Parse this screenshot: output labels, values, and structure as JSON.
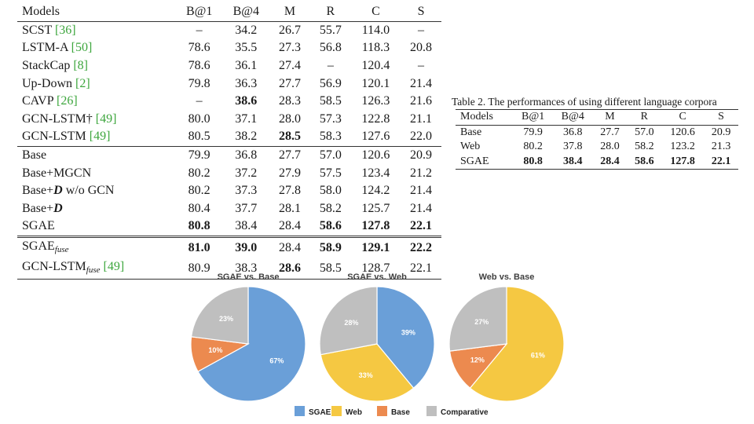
{
  "table1": {
    "headers": [
      "Models",
      "B@1",
      "B@4",
      "M",
      "R",
      "C",
      "S"
    ],
    "rows": [
      {
        "model": "SCST ",
        "cite": "[36]",
        "values": [
          "–",
          "34.2",
          "26.7",
          "55.7",
          "114.0",
          "–"
        ],
        "bold": []
      },
      {
        "model": "LSTM-A ",
        "cite": "[50]",
        "values": [
          "78.6",
          "35.5",
          "27.3",
          "56.8",
          "118.3",
          "20.8"
        ],
        "bold": []
      },
      {
        "model": "StackCap ",
        "cite": "[8]",
        "values": [
          "78.6",
          "36.1",
          "27.4",
          "–",
          "120.4",
          "–"
        ],
        "bold": []
      },
      {
        "model": "Up-Down ",
        "cite": "[2]",
        "values": [
          "79.8",
          "36.3",
          "27.7",
          "56.9",
          "120.1",
          "21.4"
        ],
        "bold": []
      },
      {
        "model": "CAVP ",
        "cite": "[26]",
        "values": [
          "–",
          "38.6",
          "28.3",
          "58.5",
          "126.3",
          "21.6"
        ],
        "bold": [
          1
        ]
      },
      {
        "model": "GCN-LSTM† ",
        "cite": "[49]",
        "values": [
          "80.0",
          "37.1",
          "28.0",
          "57.3",
          "122.8",
          "21.1"
        ],
        "bold": []
      },
      {
        "model": "GCN-LSTM ",
        "cite": "[49]",
        "values": [
          "80.5",
          "38.2",
          "28.5",
          "58.3",
          "127.6",
          "22.0"
        ],
        "bold": [
          2
        ]
      },
      {
        "model": "Base",
        "cite": "",
        "values": [
          "79.9",
          "36.8",
          "27.7",
          "57.0",
          "120.6",
          "20.9"
        ],
        "bold": [],
        "sep": true
      },
      {
        "model": "Base+MGCN",
        "cite": "",
        "values": [
          "80.2",
          "37.2",
          "27.9",
          "57.5",
          "123.4",
          "21.2"
        ],
        "bold": []
      },
      {
        "model": "Base+D w/o GCN",
        "cite": "",
        "values": [
          "80.2",
          "37.3",
          "27.8",
          "58.0",
          "124.2",
          "21.4"
        ],
        "bold": []
      },
      {
        "model": "Base+D",
        "cite": "",
        "values": [
          "80.4",
          "37.7",
          "28.1",
          "58.2",
          "125.7",
          "21.4"
        ],
        "bold": []
      },
      {
        "model": "SGAE",
        "cite": "",
        "values": [
          "80.8",
          "38.4",
          "28.4",
          "58.6",
          "127.8",
          "22.1"
        ],
        "bold": [
          0,
          3,
          4,
          5
        ]
      },
      {
        "model": "SGAEfuse",
        "cite": "",
        "values": [
          "81.0",
          "39.0",
          "28.4",
          "58.9",
          "129.1",
          "22.2"
        ],
        "bold": [
          0,
          1,
          3,
          4,
          5
        ],
        "sep2": true
      },
      {
        "model": "GCN-LSTMfuse ",
        "cite": "[49]",
        "values": [
          "80.9",
          "38.3",
          "28.6",
          "58.5",
          "128.7",
          "22.1"
        ],
        "bold": [
          2
        ]
      }
    ]
  },
  "table2": {
    "caption": "Table 2. The performances of using different language corpora",
    "headers": [
      "Models",
      "B@1",
      "B@4",
      "M",
      "R",
      "C",
      "S"
    ],
    "rows": [
      {
        "model": "Base",
        "values": [
          "79.9",
          "36.8",
          "27.7",
          "57.0",
          "120.6",
          "20.9"
        ],
        "bold": false
      },
      {
        "model": "Web",
        "values": [
          "80.2",
          "37.8",
          "28.0",
          "58.2",
          "123.2",
          "21.3"
        ],
        "bold": false
      },
      {
        "model": "SGAE",
        "values": [
          "80.8",
          "38.4",
          "28.4",
          "58.6",
          "127.8",
          "22.1"
        ],
        "bold": true
      }
    ]
  },
  "chart_data": [
    {
      "type": "pie",
      "title": "SGAE vs. Base",
      "labels": [
        "SGAE",
        "Base",
        "Comparative"
      ],
      "values": [
        67,
        10,
        23
      ],
      "colors": [
        "#6a9fd8",
        "#ec8a4f",
        "#bfbfbf"
      ]
    },
    {
      "type": "pie",
      "title": "SGAE vs. Web",
      "labels": [
        "SGAE",
        "Web",
        "Comparative"
      ],
      "values": [
        39,
        33,
        28
      ],
      "colors": [
        "#6a9fd8",
        "#f5c842",
        "#bfbfbf"
      ]
    },
    {
      "type": "pie",
      "title": "Web vs. Base",
      "labels": [
        "Web",
        "Base",
        "Comparative"
      ],
      "values": [
        61,
        12,
        27
      ],
      "colors": [
        "#f5c842",
        "#ec8a4f",
        "#bfbfbf"
      ]
    }
  ],
  "legend": [
    {
      "label": "SGAE",
      "color": "#6a9fd8"
    },
    {
      "label": "Web",
      "color": "#f5c842"
    },
    {
      "label": "Base",
      "color": "#ec8a4f"
    },
    {
      "label": "Comparative",
      "color": "#bfbfbf"
    }
  ]
}
